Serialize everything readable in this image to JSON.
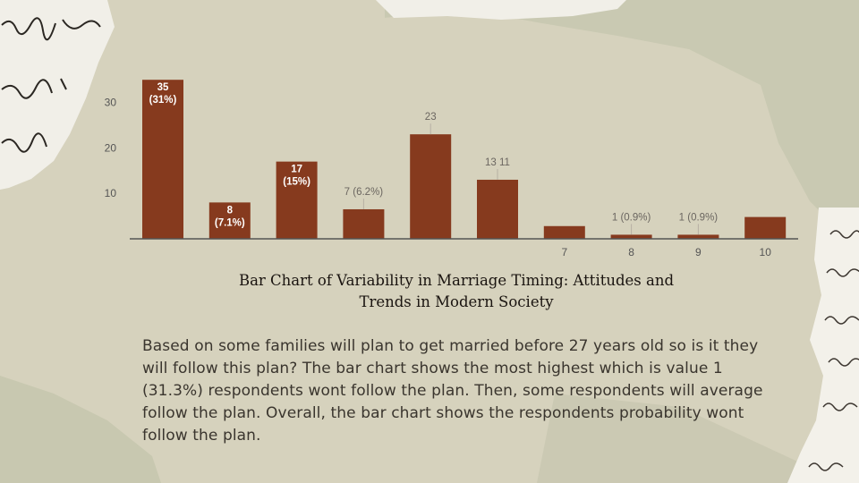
{
  "chart_data": {
    "type": "bar",
    "categories": [
      "",
      "",
      "",
      "",
      "",
      "",
      "7",
      "8",
      "9",
      "10"
    ],
    "values": [
      35,
      8,
      17,
      6.5,
      23,
      13,
      2.8,
      0.9,
      0.9,
      4.8
    ],
    "labels": [
      "35\n(31%)",
      "8\n(7.1%)",
      "17\n(15%)",
      "7 (6.2%)",
      "23",
      "13  11",
      "",
      "1 (0.9%)",
      "1 (0.9%)",
      ""
    ],
    "label_inside": [
      true,
      true,
      true,
      false,
      false,
      false,
      false,
      false,
      false,
      false
    ],
    "yticks": [
      10,
      20,
      30
    ],
    "ylim": [
      0,
      37
    ],
    "bar_color": "#863a1e",
    "grid": false
  },
  "caption": {
    "line1": "Bar Chart of Variability in Marriage Timing: Attitudes and",
    "line2": "Trends in Modern Society"
  },
  "paragraph": "Based on some families will plan to get married before 27 years old so is it they will follow this plan? The bar chart shows the most highest which is value 1 (31.3%)  respondents wont follow the plan. Then, some respondents will average follow the plan. Overall, the bar chart shows the respondents probability wont follow the plan."
}
